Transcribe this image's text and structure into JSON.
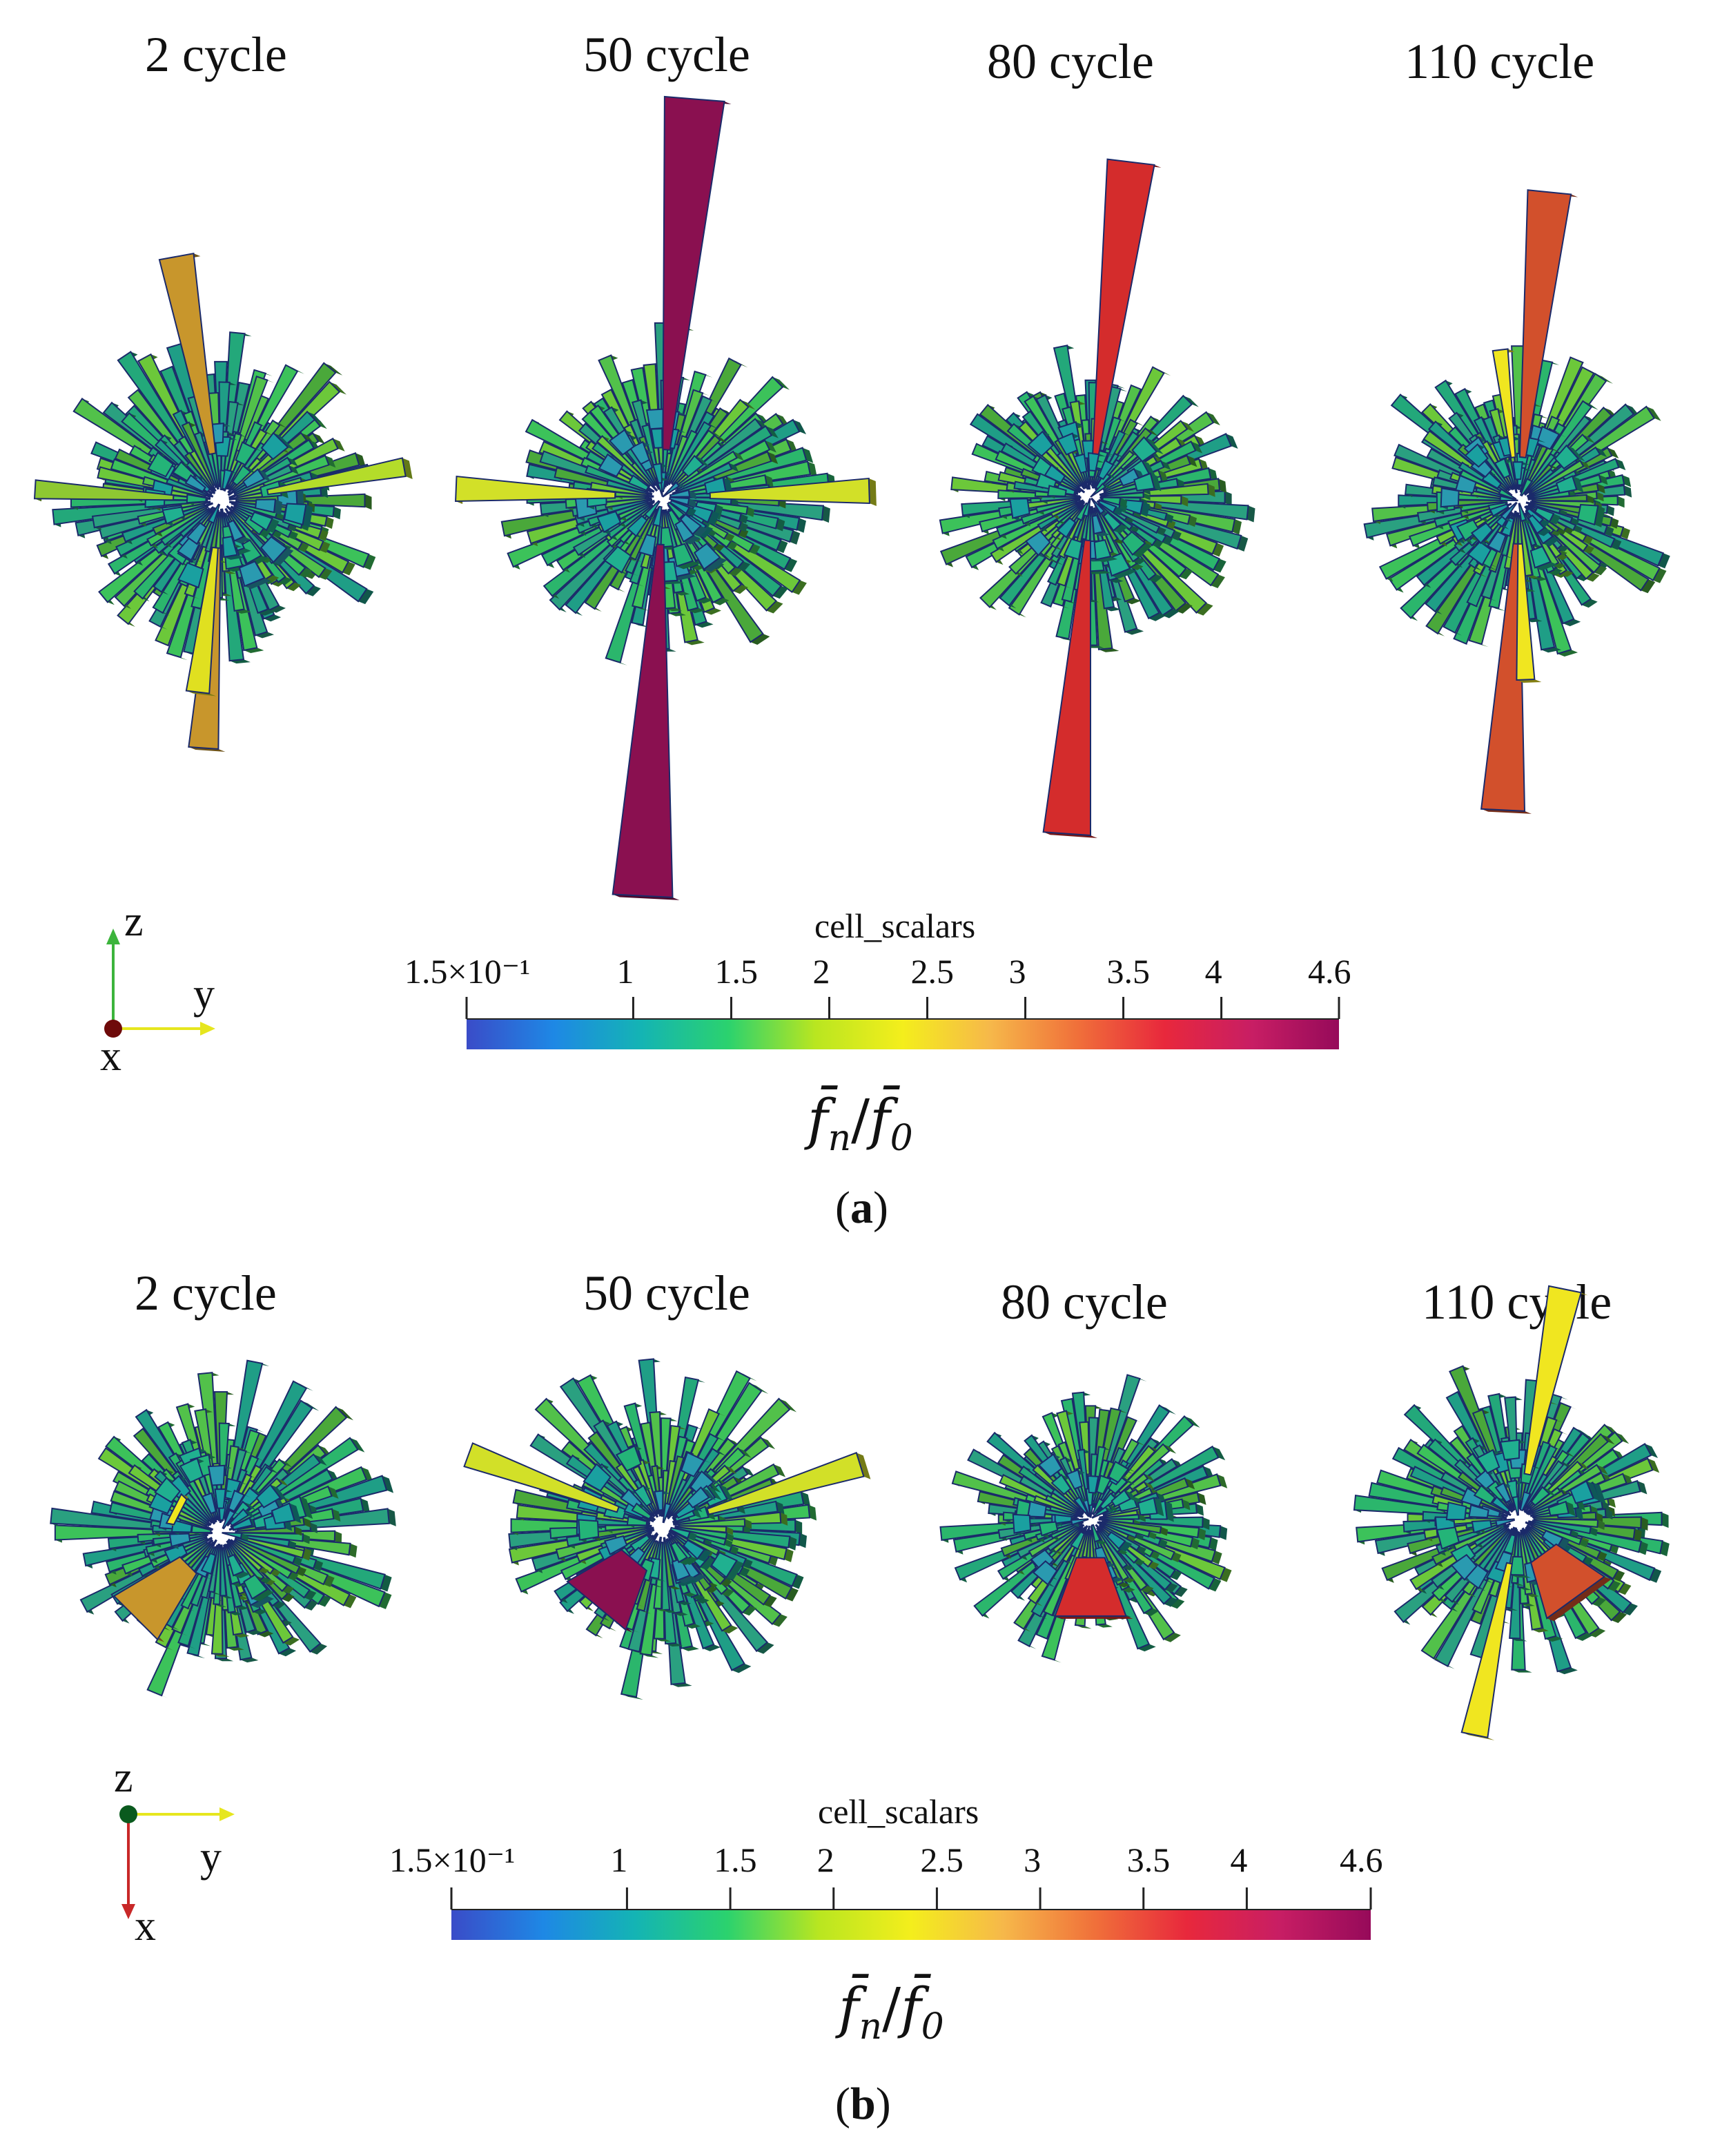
{
  "panels": [
    {
      "label": "(a)",
      "label_letter": "a",
      "titles": [
        "2 cycle",
        "50 cycle",
        "80 cycle",
        "110 cycle"
      ],
      "colorbar": {
        "title": "cell_scalars",
        "ticks": [
          "1.5×10⁻¹",
          "1",
          "1.5",
          "2",
          "2.5",
          "3",
          "3.5",
          "4",
          "4.6"
        ],
        "min": 0.15,
        "max": 4.6,
        "tick_values": [
          0.15,
          1,
          1.5,
          2,
          2.5,
          3,
          3.5,
          4,
          4.6
        ],
        "label_num": "f̄",
        "label_num_sub": "n",
        "label_den": "f̄",
        "label_den_sub": "0"
      },
      "axes": {
        "up": "z",
        "right": "y",
        "dot": "x"
      }
    },
    {
      "label": "(b)",
      "label_letter": "b",
      "titles": [
        "2 cycle",
        "50 cycle",
        "80 cycle",
        "110 cycle"
      ],
      "colorbar": {
        "title": "cell_scalars",
        "ticks": [
          "1.5×10⁻¹",
          "1",
          "1.5",
          "2",
          "2.5",
          "3",
          "3.5",
          "4",
          "4.6"
        ],
        "min": 0.15,
        "max": 4.6,
        "tick_values": [
          0.15,
          1,
          1.5,
          2,
          2.5,
          3,
          3.5,
          4,
          4.6
        ],
        "label_num": "f̄",
        "label_num_sub": "n",
        "label_den": "f̄",
        "label_den_sub": "0"
      },
      "axes": {
        "dot": "z",
        "right": "y",
        "down": "x"
      }
    }
  ],
  "colors": {
    "cmap": [
      "#3a4cc8",
      "#1e88e5",
      "#14b4b4",
      "#2bd26e",
      "#b9e620",
      "#f4ee1c",
      "#f6b84a",
      "#f0703a",
      "#e8283c",
      "#c81e64",
      "#960a5a"
    ],
    "max_rose_50": "#8a1050",
    "max_rose_80": "#d42c2c",
    "max_rose_110": "#d2502c",
    "max_rose_2": "#c8962c",
    "axis_z": "#3cb43c",
    "axis_y": "#e6e61e",
    "axis_x_dot": "#6e0a0a",
    "axis_x_arrow": "#c82828",
    "axis_z_dot_b": "#0a5a1e"
  }
}
